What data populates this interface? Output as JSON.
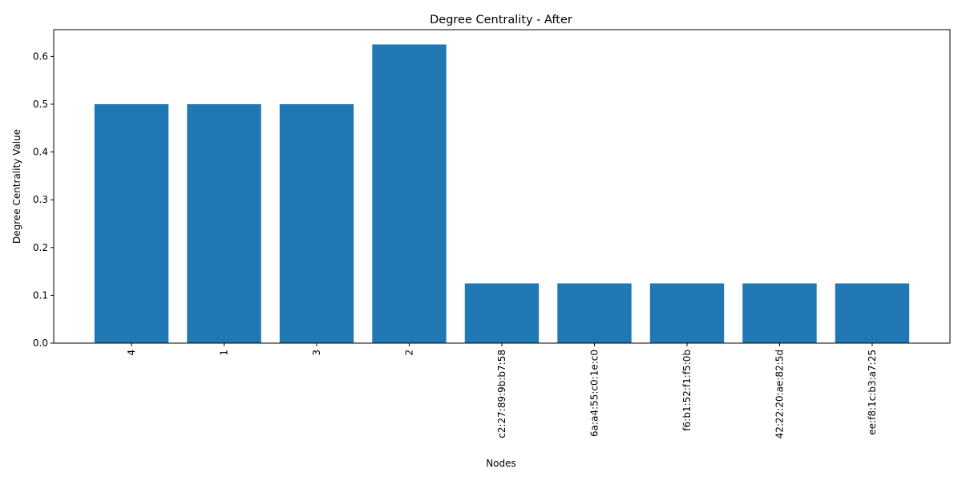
{
  "chart_data": {
    "type": "bar",
    "title": "Degree Centrality - After",
    "xlabel": "Nodes",
    "ylabel": "Degree Centrality Value",
    "categories": [
      "4",
      "1",
      "3",
      "2",
      "c2:27:89:9b:b7:58",
      "6a:a4:55:c0:1e:c0",
      "f6:b1:52:f1:f5:0b",
      "42:22:20:ae:82:5d",
      "ee:f8:1c:b3:a7:25"
    ],
    "values": [
      0.5,
      0.5,
      0.5,
      0.625,
      0.125,
      0.125,
      0.125,
      0.125,
      0.125
    ],
    "ylim": [
      0,
      0.656
    ],
    "yticks": [
      "0.0",
      "0.1",
      "0.2",
      "0.3",
      "0.4",
      "0.5",
      "0.6"
    ],
    "grid": false,
    "bar_color": "#1f77b4"
  }
}
